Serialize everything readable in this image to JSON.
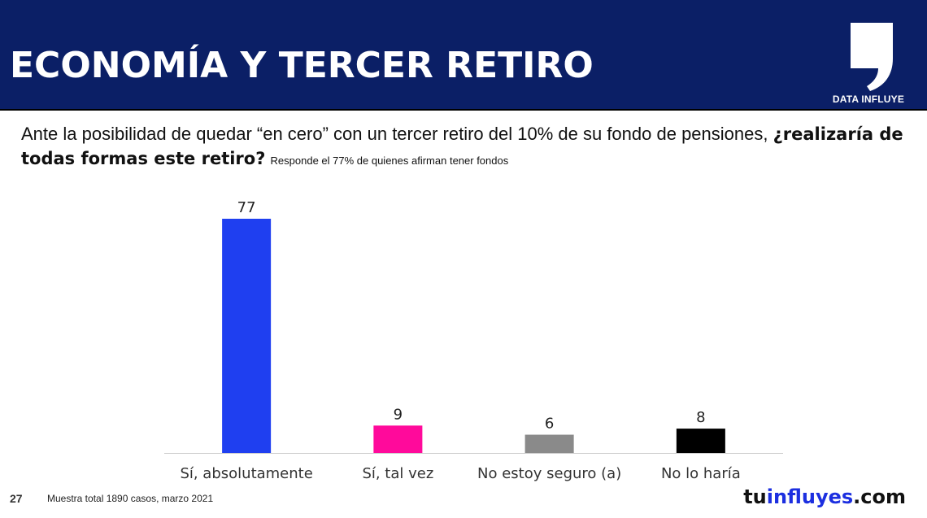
{
  "header": {
    "title": "ECONOMÍA Y TERCER RETIRO",
    "brand_label": "DATA INFLUYE",
    "bg_color": "#0b1f66",
    "brand_icon": "comma-logo-icon"
  },
  "question": {
    "text": "Ante la posibilidad de quedar “en cero” con un tercer retiro del 10% de su fondo de pensiones, ",
    "bold": "¿realizaría de todas formas este retiro?",
    "note": "Responde el 77% de quienes afirman tener fondos"
  },
  "chart_data": {
    "type": "bar",
    "categories": [
      "Sí, absolutamente",
      "Sí, tal vez",
      "No estoy seguro (a)",
      "No lo haría"
    ],
    "values": [
      77,
      9,
      6,
      8
    ],
    "colors": [
      "#1f3ff0",
      "#ff0a9b",
      "#8a8a8a",
      "#000000"
    ],
    "data_labels": [
      "77",
      "9",
      "6",
      "8"
    ],
    "ylim": [
      0,
      77
    ],
    "grid": false,
    "legend": "none"
  },
  "footer": {
    "page_number": "27",
    "note": "Muestra total 1890 casos,  marzo 2021",
    "site_prefix": "tu",
    "site_accent": "influyes",
    "site_suffix": ".com"
  }
}
